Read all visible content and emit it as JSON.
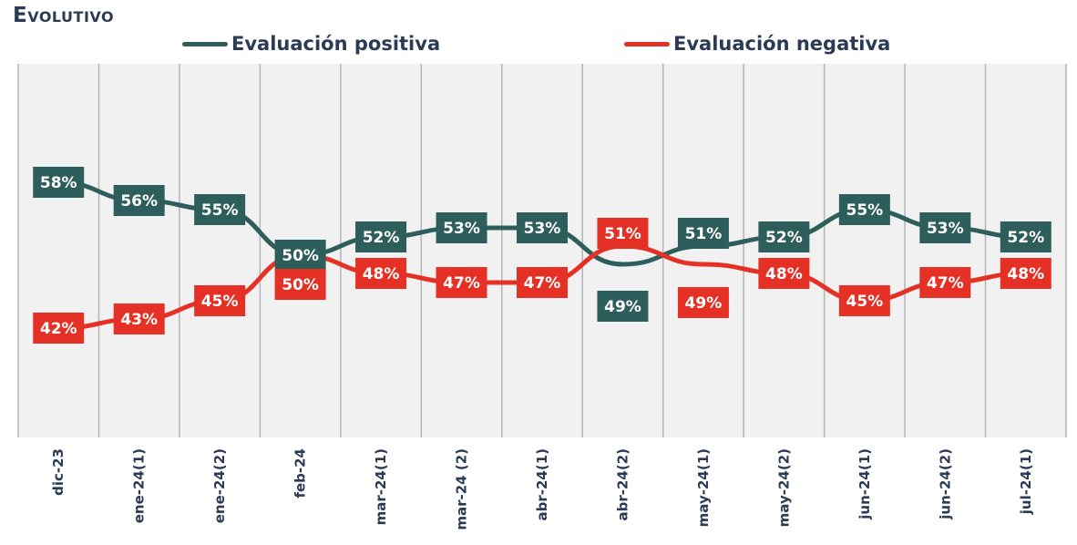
{
  "title": "Evolutivo",
  "colors": {
    "positive": "#2E5E5B",
    "negative": "#E53125",
    "plot_bg": "#F1F1F1",
    "grid": "#B4B4B8",
    "text": "#2B3A55"
  },
  "legend": [
    {
      "label": "Evaluación positiva",
      "color": "#2E5E5B"
    },
    {
      "label": "Evaluación negativa",
      "color": "#E53125"
    }
  ],
  "chart_data": {
    "type": "line",
    "title": "Evolutivo",
    "xlabel": "",
    "ylabel": "",
    "ylim": [
      30,
      71
    ],
    "grid": "vertical",
    "legend_position": "top",
    "categories": [
      "dic-23",
      "ene-24(1)",
      "ene-24(2)",
      "feb-24",
      "mar-24(1)",
      "mar-24 (2)",
      "abr-24(1)",
      "abr-24(2)",
      "may-24(1)",
      "may-24(2)",
      "jun-24(1)",
      "jun-24(2)",
      "jul-24(1)"
    ],
    "series": [
      {
        "name": "Evaluación positiva",
        "color": "#2E5E5B",
        "values": [
          58,
          56,
          55,
          50,
          52,
          53,
          53,
          49,
          51,
          52,
          55,
          53,
          52
        ],
        "labels": [
          "58%",
          "56%",
          "55%",
          "50%",
          "52%",
          "53%",
          "53%",
          "49%",
          "51%",
          "52%",
          "55%",
          "53%",
          "52%"
        ]
      },
      {
        "name": "Evaluación negativa",
        "color": "#E53125",
        "values": [
          42,
          43,
          45,
          50,
          48,
          47,
          47,
          51,
          49,
          48,
          45,
          47,
          48
        ],
        "labels": [
          "42%",
          "43%",
          "45%",
          "50%",
          "48%",
          "47%",
          "47%",
          "51%",
          "49%",
          "48%",
          "45%",
          "47%",
          "48%"
        ]
      }
    ]
  }
}
